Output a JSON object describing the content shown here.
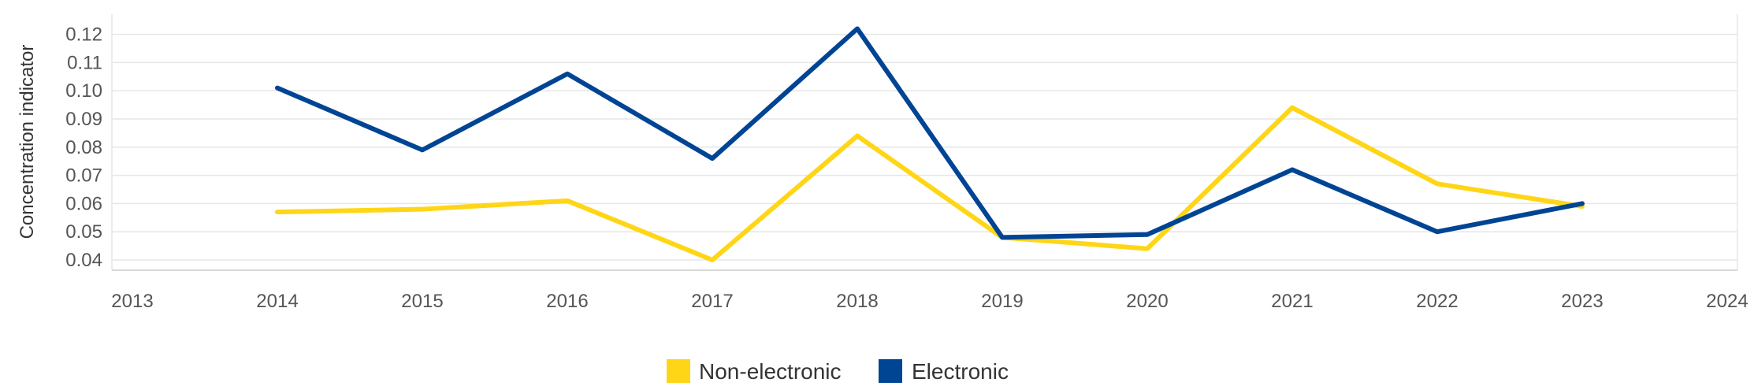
{
  "chart_data": {
    "type": "line",
    "ylabel": "Concentration indicator",
    "x_ticks": [
      "2013",
      "2014",
      "2015",
      "2016",
      "2017",
      "2018",
      "2019",
      "2020",
      "2021",
      "2022",
      "2023",
      "2024"
    ],
    "y_ticks": [
      "0.04",
      "0.05",
      "0.06",
      "0.07",
      "0.08",
      "0.09",
      "0.10",
      "0.11",
      "0.12"
    ],
    "xlim": [
      2013,
      2024
    ],
    "ylim": [
      0.036,
      0.124
    ],
    "grid": true,
    "legend_position": "bottom-center",
    "series": [
      {
        "name": "Non-electronic",
        "color": "#FFD617",
        "x": [
          2014,
          2015,
          2016,
          2017,
          2018,
          2019,
          2020,
          2021,
          2022,
          2023
        ],
        "values": [
          0.057,
          0.058,
          0.061,
          0.04,
          0.084,
          0.048,
          0.044,
          0.094,
          0.067,
          0.059
        ]
      },
      {
        "name": "Electronic",
        "color": "#004494",
        "x": [
          2014,
          2015,
          2016,
          2017,
          2018,
          2019,
          2020,
          2021,
          2022,
          2023
        ],
        "values": [
          0.101,
          0.079,
          0.106,
          0.076,
          0.122,
          0.048,
          0.049,
          0.072,
          0.05,
          0.06
        ]
      }
    ]
  }
}
